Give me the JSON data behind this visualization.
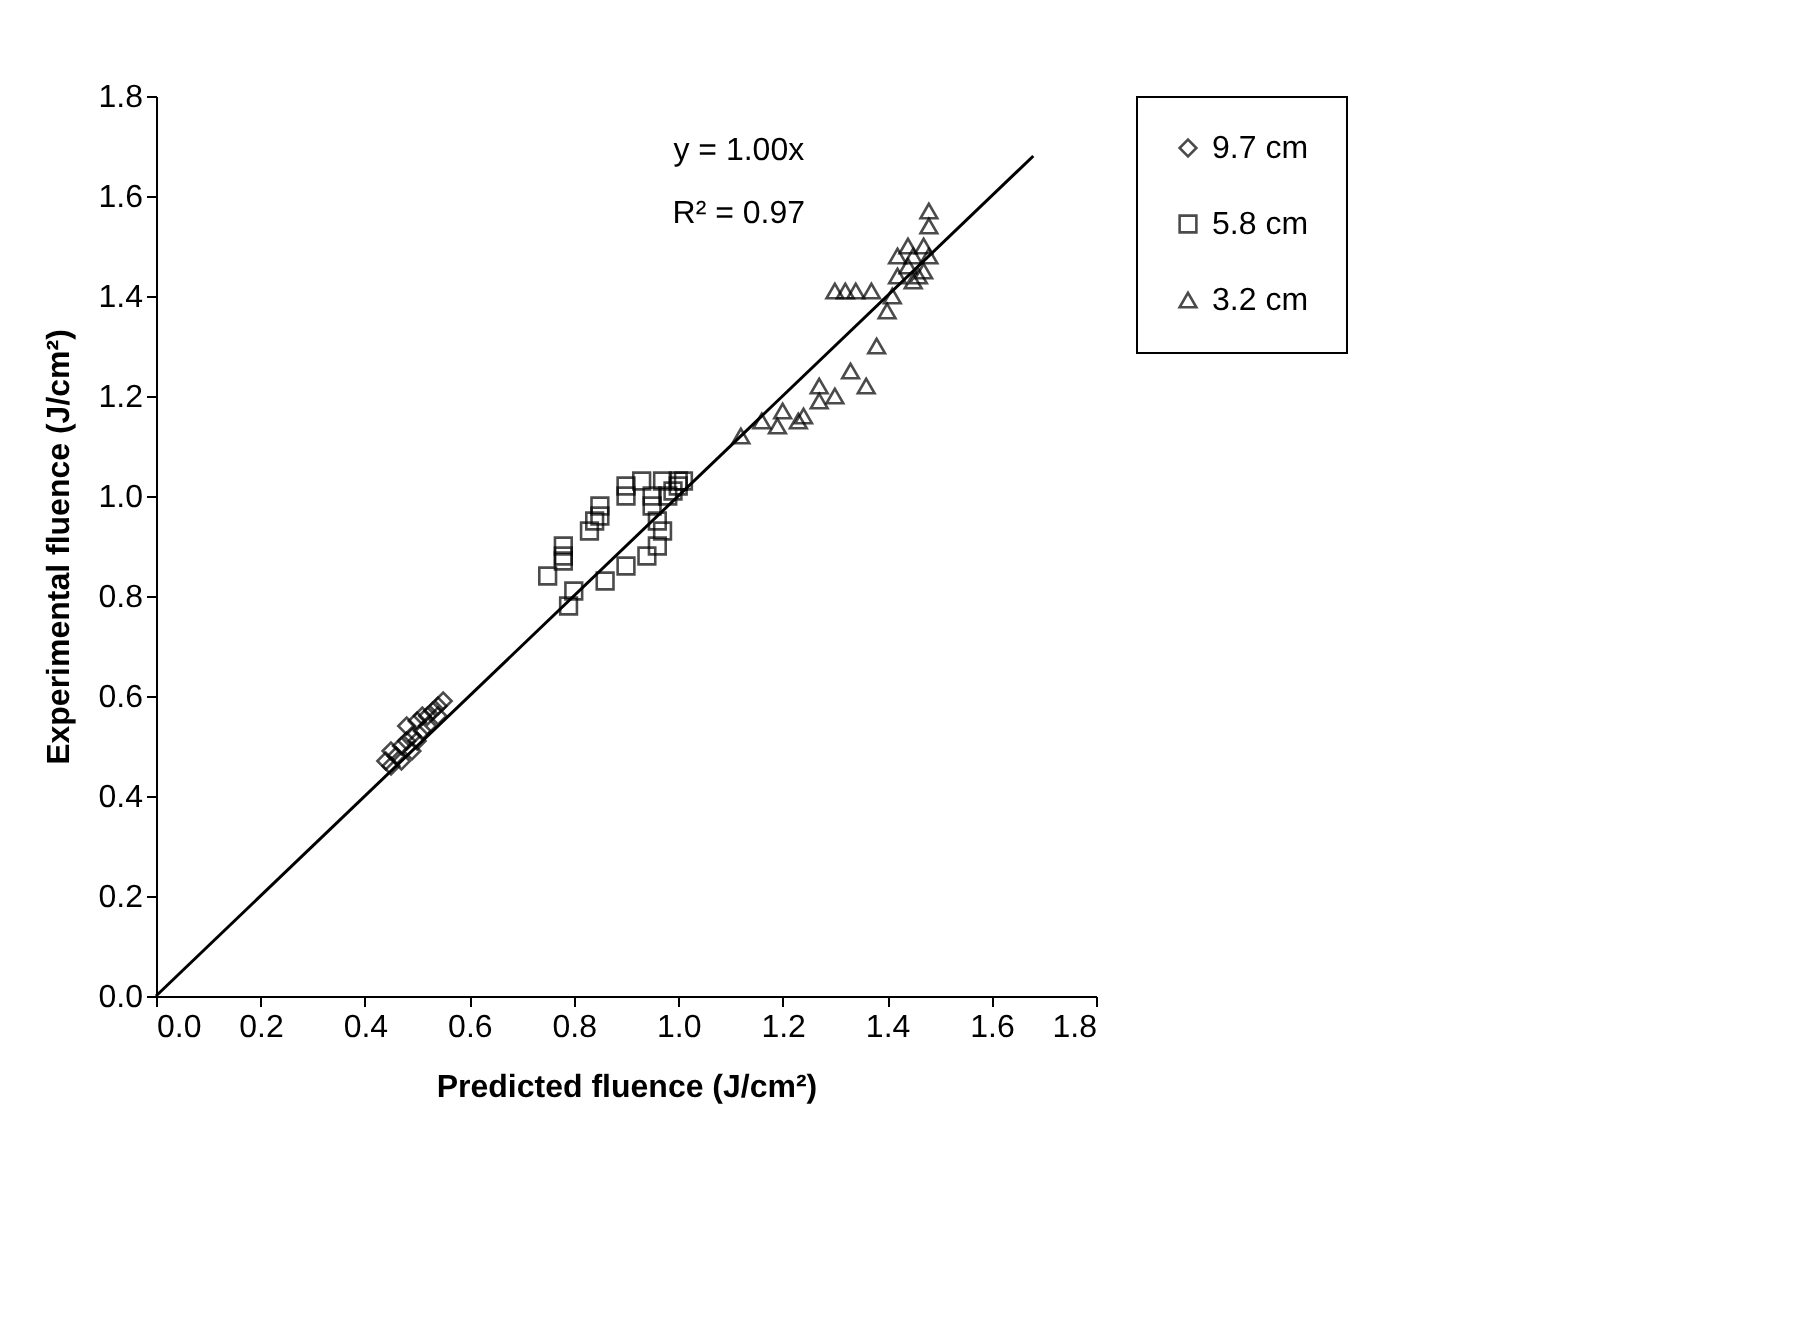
{
  "chart_data": {
    "type": "scatter",
    "xlabel": "Predicted fluence (J/cm²)",
    "ylabel": "Experimental fluence (J/cm²)",
    "xlim": [
      0,
      1.8
    ],
    "ylim": [
      0,
      1.8
    ],
    "xticks": [
      {
        "value": 0,
        "label": "0.0"
      },
      {
        "value": 0.2,
        "label": "0.2"
      },
      {
        "value": 0.4,
        "label": "0.4"
      },
      {
        "value": 0.6,
        "label": "0.6"
      },
      {
        "value": 0.8,
        "label": "0.8"
      },
      {
        "value": 1,
        "label": "1.0"
      },
      {
        "value": 1.2,
        "label": "1.2"
      },
      {
        "value": 1.4,
        "label": "1.4"
      },
      {
        "value": 1.6,
        "label": "1.6"
      },
      {
        "value": 1.8,
        "label": "1.8"
      }
    ],
    "yticks": [
      {
        "value": 0,
        "label": "0.0"
      },
      {
        "value": 0.2,
        "label": "0.2"
      },
      {
        "value": 0.4,
        "label": "0.4"
      },
      {
        "value": 0.6,
        "label": "0.6"
      },
      {
        "value": 0.8,
        "label": "0.8"
      },
      {
        "value": 1,
        "label": "1.0"
      },
      {
        "value": 1.2,
        "label": "1.2"
      },
      {
        "value": 1.4,
        "label": "1.4"
      },
      {
        "value": 1.6,
        "label": "1.6"
      },
      {
        "value": 1.8,
        "label": "1.8"
      }
    ],
    "grid": false,
    "legend": "right",
    "annotations": [
      "y = 1.00x",
      "R² = 0.97"
    ],
    "series": [
      {
        "name": "9.7 cm",
        "color": "#000000",
        "marker": "diamond",
        "x": [
          0.44,
          0.45,
          0.45,
          0.46,
          0.47,
          0.47,
          0.48,
          0.48,
          0.49,
          0.5,
          0.5,
          0.51,
          0.52,
          0.52,
          0.53,
          0.54,
          0.55,
          0.54,
          0.51,
          0.49
        ],
        "values": [
          0.47,
          0.46,
          0.49,
          0.48,
          0.5,
          0.47,
          0.51,
          0.54,
          0.52,
          0.55,
          0.51,
          0.53,
          0.56,
          0.54,
          0.57,
          0.58,
          0.59,
          0.56,
          0.56,
          0.49
        ]
      },
      {
        "name": "5.8 cm",
        "color": "#000000",
        "marker": "square",
        "x": [
          0.75,
          0.78,
          0.78,
          0.79,
          0.8,
          0.78,
          0.83,
          0.84,
          0.85,
          0.85,
          0.86,
          0.9,
          0.9,
          0.9,
          0.93,
          0.94,
          0.95,
          0.95,
          0.96,
          0.96,
          0.97,
          0.97,
          0.98,
          1.0,
          1.0,
          1.01,
          0.99
        ],
        "values": [
          0.84,
          0.87,
          0.9,
          0.78,
          0.81,
          0.88,
          0.93,
          0.95,
          0.96,
          0.98,
          0.83,
          0.86,
          1.0,
          1.02,
          1.03,
          0.88,
          0.98,
          1.0,
          0.9,
          0.95,
          0.93,
          1.03,
          1.0,
          1.02,
          1.03,
          1.03,
          1.01
        ]
      },
      {
        "name": "3.2 cm",
        "color": "#000000",
        "marker": "triangle",
        "x": [
          1.12,
          1.16,
          1.19,
          1.2,
          1.23,
          1.24,
          1.27,
          1.27,
          1.3,
          1.33,
          1.36,
          1.38,
          1.4,
          1.41,
          1.3,
          1.32,
          1.34,
          1.37,
          1.42,
          1.42,
          1.44,
          1.45,
          1.46,
          1.47,
          1.47,
          1.48,
          1.48,
          1.48,
          1.45,
          1.44
        ],
        "values": [
          1.12,
          1.15,
          1.14,
          1.17,
          1.15,
          1.16,
          1.22,
          1.19,
          1.2,
          1.25,
          1.22,
          1.3,
          1.37,
          1.4,
          1.41,
          1.41,
          1.41,
          1.41,
          1.44,
          1.48,
          1.46,
          1.43,
          1.44,
          1.45,
          1.5,
          1.54,
          1.57,
          1.48,
          1.48,
          1.5
        ]
      },
      {
        "type": "line",
        "color": "#000000",
        "marker": "none",
        "line_style": "solid",
        "x": [
          0,
          1.68
        ],
        "values": [
          0,
          1.68
        ]
      }
    ]
  }
}
